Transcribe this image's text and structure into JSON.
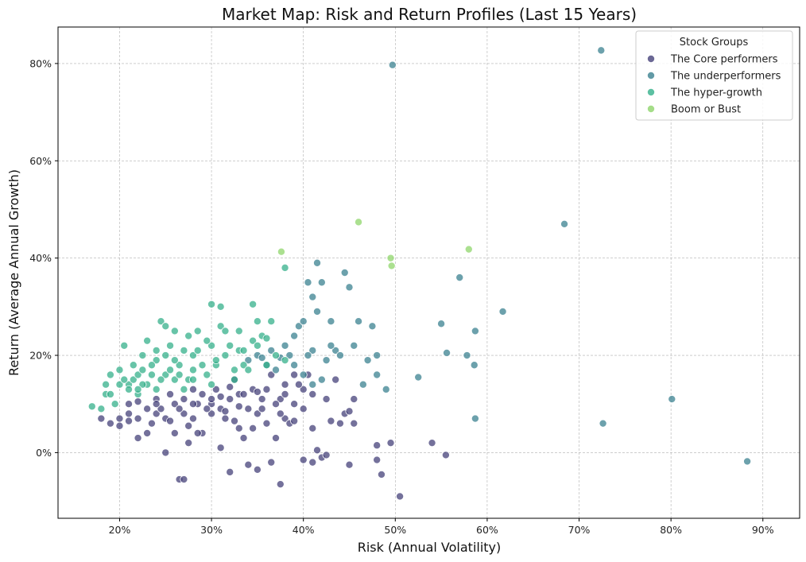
{
  "chart_data": {
    "type": "scatter",
    "title": "Market Map: Risk and Return Profiles (Last 15 Years)",
    "xlabel": "Risk (Annual Volatility)",
    "ylabel": "Return (Average Annual Growth)",
    "xlim": [
      0.133,
      0.94
    ],
    "ylim": [
      -0.135,
      0.875
    ],
    "xticks": [
      0.2,
      0.3,
      0.4,
      0.5,
      0.6,
      0.7,
      0.8,
      0.9
    ],
    "xtick_labels": [
      "20%",
      "30%",
      "40%",
      "50%",
      "60%",
      "70%",
      "80%",
      "90%"
    ],
    "yticks": [
      0.0,
      0.2,
      0.4,
      0.6,
      0.8
    ],
    "ytick_labels": [
      "0%",
      "20%",
      "40%",
      "60%",
      "80%"
    ],
    "grid": true,
    "legend": {
      "title": "Stock Groups",
      "placement": "top-right"
    },
    "series": [
      {
        "name": "The Core performers",
        "color": "#46427a",
        "points": [
          [
            0.18,
            0.07
          ],
          [
            0.19,
            0.06
          ],
          [
            0.2,
            0.07
          ],
          [
            0.21,
            0.08
          ],
          [
            0.21,
            0.1
          ],
          [
            0.22,
            0.03
          ],
          [
            0.22,
            0.07
          ],
          [
            0.23,
            0.09
          ],
          [
            0.23,
            0.04
          ],
          [
            0.24,
            0.08
          ],
          [
            0.24,
            0.11
          ],
          [
            0.245,
            0.09
          ],
          [
            0.25,
            0.0
          ],
          [
            0.25,
            0.07
          ],
          [
            0.255,
            0.12
          ],
          [
            0.26,
            0.1
          ],
          [
            0.26,
            0.04
          ],
          [
            0.265,
            -0.055
          ],
          [
            0.27,
            -0.055
          ],
          [
            0.27,
            0.08
          ],
          [
            0.27,
            0.11
          ],
          [
            0.275,
            0.02
          ],
          [
            0.28,
            0.07
          ],
          [
            0.28,
            0.13
          ],
          [
            0.285,
            0.1
          ],
          [
            0.29,
            0.04
          ],
          [
            0.29,
            0.12
          ],
          [
            0.3,
            0.08
          ],
          [
            0.3,
            0.1
          ],
          [
            0.305,
            0.13
          ],
          [
            0.31,
            0.01
          ],
          [
            0.31,
            0.09
          ],
          [
            0.315,
            0.07
          ],
          [
            0.32,
            -0.04
          ],
          [
            0.32,
            0.11
          ],
          [
            0.325,
            0.15
          ],
          [
            0.33,
            0.05
          ],
          [
            0.33,
            0.12
          ],
          [
            0.335,
            0.03
          ],
          [
            0.34,
            0.09
          ],
          [
            0.34,
            -0.025
          ],
          [
            0.345,
            0.13
          ],
          [
            0.35,
            -0.035
          ],
          [
            0.35,
            0.08
          ],
          [
            0.355,
            0.11
          ],
          [
            0.36,
            0.06
          ],
          [
            0.365,
            -0.02
          ],
          [
            0.365,
            0.16
          ],
          [
            0.37,
            0.03
          ],
          [
            0.375,
            -0.065
          ],
          [
            0.375,
            0.11
          ],
          [
            0.38,
            0.07
          ],
          [
            0.38,
            0.14
          ],
          [
            0.385,
            0.06
          ],
          [
            0.39,
            0.16
          ],
          [
            0.39,
            0.1
          ],
          [
            0.4,
            -0.015
          ],
          [
            0.4,
            0.13
          ],
          [
            0.405,
            0.16
          ],
          [
            0.41,
            -0.02
          ],
          [
            0.41,
            0.05
          ],
          [
            0.41,
            0.12
          ],
          [
            0.415,
            0.005
          ],
          [
            0.42,
            -0.01
          ],
          [
            0.425,
            0.11
          ],
          [
            0.425,
            -0.005
          ],
          [
            0.43,
            0.065
          ],
          [
            0.435,
            0.15
          ],
          [
            0.44,
            0.06
          ],
          [
            0.445,
            0.08
          ],
          [
            0.45,
            0.085
          ],
          [
            0.455,
            0.06
          ],
          [
            0.45,
            -0.025
          ],
          [
            0.455,
            0.11
          ],
          [
            0.48,
            -0.015
          ],
          [
            0.48,
            0.015
          ],
          [
            0.485,
            -0.045
          ],
          [
            0.495,
            0.02
          ],
          [
            0.505,
            -0.09
          ],
          [
            0.54,
            0.02
          ],
          [
            0.555,
            -0.005
          ],
          [
            0.2,
            0.055
          ],
          [
            0.21,
            0.065
          ],
          [
            0.22,
            0.105
          ],
          [
            0.235,
            0.06
          ],
          [
            0.24,
            0.1
          ],
          [
            0.255,
            0.065
          ],
          [
            0.265,
            0.09
          ],
          [
            0.275,
            0.055
          ],
          [
            0.28,
            0.1
          ],
          [
            0.285,
            0.04
          ],
          [
            0.295,
            0.09
          ],
          [
            0.3,
            0.11
          ],
          [
            0.31,
            0.115
          ],
          [
            0.315,
            0.085
          ],
          [
            0.32,
            0.135
          ],
          [
            0.325,
            0.065
          ],
          [
            0.33,
            0.095
          ],
          [
            0.335,
            0.12
          ],
          [
            0.345,
            0.05
          ],
          [
            0.35,
            0.125
          ],
          [
            0.355,
            0.09
          ],
          [
            0.36,
            0.13
          ],
          [
            0.37,
            0.1
          ],
          [
            0.375,
            0.08
          ],
          [
            0.38,
            0.12
          ],
          [
            0.39,
            0.065
          ],
          [
            0.395,
            0.14
          ],
          [
            0.4,
            0.09
          ]
        ]
      },
      {
        "name": "The underperformers",
        "color": "#3b8190",
        "points": [
          [
            0.34,
            0.19
          ],
          [
            0.35,
            0.2
          ],
          [
            0.36,
            0.18
          ],
          [
            0.37,
            0.17
          ],
          [
            0.375,
            0.195
          ],
          [
            0.38,
            0.22
          ],
          [
            0.385,
            0.2
          ],
          [
            0.39,
            0.24
          ],
          [
            0.395,
            0.26
          ],
          [
            0.4,
            0.27
          ],
          [
            0.405,
            0.35
          ],
          [
            0.41,
            0.32
          ],
          [
            0.41,
            0.21
          ],
          [
            0.415,
            0.29
          ],
          [
            0.415,
            0.39
          ],
          [
            0.42,
            0.35
          ],
          [
            0.425,
            0.19
          ],
          [
            0.43,
            0.27
          ],
          [
            0.435,
            0.21
          ],
          [
            0.44,
            0.2
          ],
          [
            0.445,
            0.37
          ],
          [
            0.45,
            0.34
          ],
          [
            0.455,
            0.22
          ],
          [
            0.46,
            0.27
          ],
          [
            0.465,
            0.14
          ],
          [
            0.47,
            0.19
          ],
          [
            0.475,
            0.26
          ],
          [
            0.48,
            0.2
          ],
          [
            0.48,
            0.16
          ],
          [
            0.49,
            0.13
          ],
          [
            0.497,
            0.797
          ],
          [
            0.525,
            0.155
          ],
          [
            0.55,
            0.265
          ],
          [
            0.556,
            0.205
          ],
          [
            0.57,
            0.36
          ],
          [
            0.578,
            0.2
          ],
          [
            0.586,
            0.18
          ],
          [
            0.587,
            0.25
          ],
          [
            0.587,
            0.07
          ],
          [
            0.617,
            0.29
          ],
          [
            0.684,
            0.47
          ],
          [
            0.724,
            0.827
          ],
          [
            0.726,
            0.06
          ],
          [
            0.801,
            0.11
          ],
          [
            0.883,
            -0.018
          ],
          [
            0.4,
            0.16
          ],
          [
            0.41,
            0.14
          ],
          [
            0.39,
            0.18
          ],
          [
            0.365,
            0.21
          ],
          [
            0.42,
            0.15
          ],
          [
            0.43,
            0.22
          ],
          [
            0.355,
            0.195
          ],
          [
            0.405,
            0.2
          ]
        ]
      },
      {
        "name": "The hyper-growth",
        "color": "#35b08b",
        "points": [
          [
            0.17,
            0.095
          ],
          [
            0.18,
            0.09
          ],
          [
            0.185,
            0.12
          ],
          [
            0.19,
            0.16
          ],
          [
            0.19,
            0.12
          ],
          [
            0.2,
            0.14
          ],
          [
            0.2,
            0.17
          ],
          [
            0.205,
            0.22
          ],
          [
            0.21,
            0.14
          ],
          [
            0.21,
            0.13
          ],
          [
            0.215,
            0.15
          ],
          [
            0.22,
            0.12
          ],
          [
            0.22,
            0.16
          ],
          [
            0.225,
            0.2
          ],
          [
            0.225,
            0.17
          ],
          [
            0.23,
            0.23
          ],
          [
            0.23,
            0.14
          ],
          [
            0.235,
            0.16
          ],
          [
            0.24,
            0.19
          ],
          [
            0.24,
            0.13
          ],
          [
            0.245,
            0.27
          ],
          [
            0.25,
            0.2
          ],
          [
            0.25,
            0.16
          ],
          [
            0.25,
            0.26
          ],
          [
            0.255,
            0.22
          ],
          [
            0.26,
            0.25
          ],
          [
            0.26,
            0.15
          ],
          [
            0.265,
            0.18
          ],
          [
            0.27,
            0.21
          ],
          [
            0.27,
            0.13
          ],
          [
            0.275,
            0.24
          ],
          [
            0.28,
            0.17
          ],
          [
            0.28,
            0.2
          ],
          [
            0.285,
            0.25
          ],
          [
            0.29,
            0.18
          ],
          [
            0.295,
            0.16
          ],
          [
            0.3,
            0.305
          ],
          [
            0.3,
            0.22
          ],
          [
            0.305,
            0.18
          ],
          [
            0.31,
            0.3
          ],
          [
            0.31,
            0.26
          ],
          [
            0.315,
            0.2
          ],
          [
            0.32,
            0.22
          ],
          [
            0.325,
            0.17
          ],
          [
            0.33,
            0.25
          ],
          [
            0.33,
            0.21
          ],
          [
            0.335,
            0.18
          ],
          [
            0.34,
            0.17
          ],
          [
            0.345,
            0.305
          ],
          [
            0.345,
            0.23
          ],
          [
            0.35,
            0.22
          ],
          [
            0.355,
            0.24
          ],
          [
            0.36,
            0.18
          ],
          [
            0.365,
            0.27
          ],
          [
            0.37,
            0.2
          ],
          [
            0.38,
            0.38
          ],
          [
            0.38,
            0.19
          ],
          [
            0.185,
            0.14
          ],
          [
            0.195,
            0.1
          ],
          [
            0.205,
            0.15
          ],
          [
            0.215,
            0.18
          ],
          [
            0.225,
            0.14
          ],
          [
            0.235,
            0.18
          ],
          [
            0.245,
            0.15
          ],
          [
            0.255,
            0.17
          ],
          [
            0.265,
            0.16
          ],
          [
            0.275,
            0.15
          ],
          [
            0.285,
            0.21
          ],
          [
            0.295,
            0.23
          ],
          [
            0.305,
            0.19
          ],
          [
            0.315,
            0.25
          ],
          [
            0.325,
            0.15
          ],
          [
            0.335,
            0.21
          ],
          [
            0.35,
            0.27
          ],
          [
            0.36,
            0.235
          ],
          [
            0.22,
            0.13
          ],
          [
            0.24,
            0.21
          ],
          [
            0.26,
            0.19
          ],
          [
            0.28,
            0.15
          ],
          [
            0.3,
            0.14
          ]
        ]
      },
      {
        "name": "Boom or Bust",
        "color": "#8fd56b",
        "points": [
          [
            0.376,
            0.413
          ],
          [
            0.46,
            0.474
          ],
          [
            0.495,
            0.4
          ],
          [
            0.496,
            0.384
          ],
          [
            0.58,
            0.418
          ]
        ]
      }
    ]
  }
}
